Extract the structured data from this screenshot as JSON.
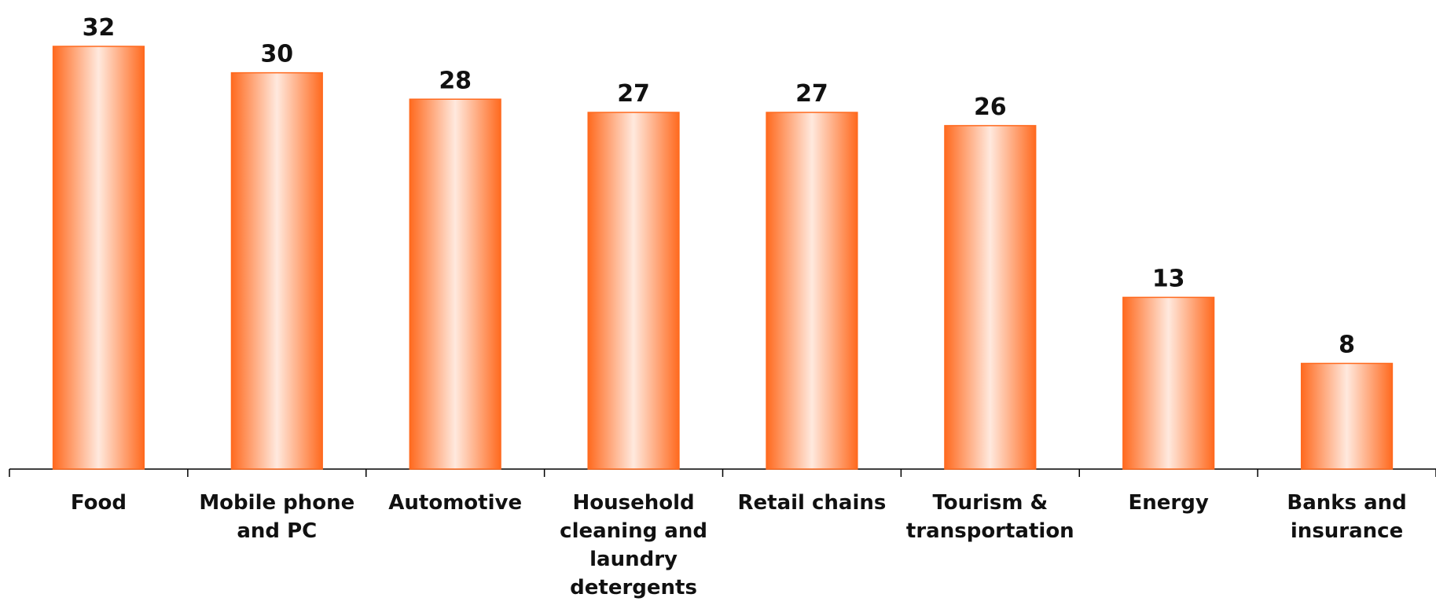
{
  "chart_data": {
    "type": "bar",
    "categories": [
      "Food",
      "Mobile phone and PC",
      "Automotive",
      "Household cleaning and laundry detergents",
      "Retail chains",
      "Tourism & transportation",
      "Energy",
      "Banks and insurance"
    ],
    "values": [
      32,
      30,
      28,
      27,
      27,
      26,
      13,
      8
    ],
    "color": "#ff6a1f"
  }
}
